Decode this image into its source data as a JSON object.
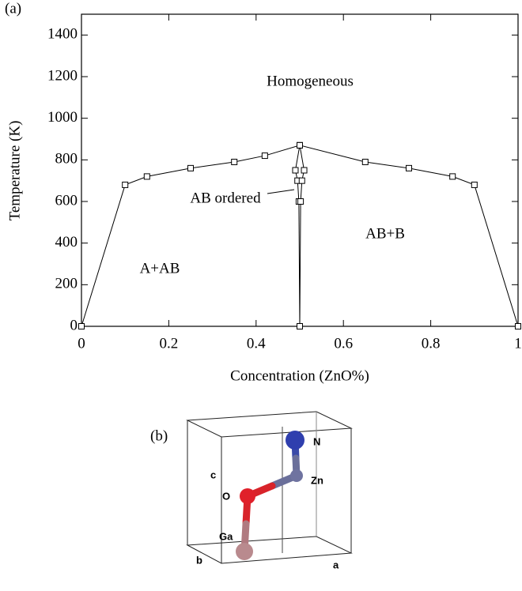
{
  "chart_data": {
    "type": "line",
    "label": "(a)",
    "xlabel": "Concentration (ZnO%)",
    "ylabel": "Temperature (K)",
    "xlim": [
      0,
      1
    ],
    "ylim": [
      0,
      1500
    ],
    "xticks": [
      0,
      0.2,
      0.4,
      0.6,
      0.8,
      1
    ],
    "yticks": [
      0,
      200,
      400,
      600,
      800,
      1000,
      1200,
      1400
    ],
    "marker": "square",
    "series": [
      {
        "color": "#000000",
        "x": [
          0,
          0.1,
          0.15,
          0.25,
          0.35,
          0.42,
          0.5,
          0.65,
          0.75,
          0.85,
          0.9,
          1
        ],
        "values": [
          0,
          680,
          720,
          760,
          790,
          820,
          870,
          790,
          760,
          720,
          680,
          0
        ]
      },
      {
        "color": "#000000",
        "x": [
          0.5,
          0.49,
          0.495,
          0.498,
          0.5
        ],
        "values": [
          870,
          750,
          700,
          600,
          0
        ]
      },
      {
        "color": "#000000",
        "x": [
          0.5,
          0.51,
          0.505,
          0.502,
          0.5
        ],
        "values": [
          870,
          750,
          700,
          600,
          0
        ]
      }
    ],
    "annotations": [
      "Homogeneous",
      "AB ordered",
      "AB+B",
      "A+AB"
    ]
  },
  "structure": {
    "label": "(b)",
    "atoms": [
      "N",
      "Zn",
      "O",
      "Ga"
    ],
    "axes": [
      "c",
      "b",
      "a"
    ]
  }
}
